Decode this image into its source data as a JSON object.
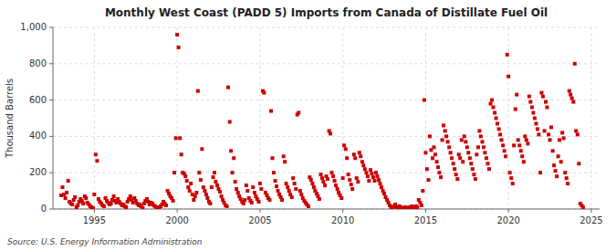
{
  "chart_data": {
    "type": "scatter",
    "title": "Monthly West Coast (PADD 5) Imports from Canada of Distillate Fuel Oil",
    "y_label": "Thousand Barrels",
    "source": "Source: U.S. Energy Information Administration",
    "color": "#cc0000",
    "marker": "square",
    "grid": true,
    "xlim": [
      1992.5,
      2025.5
    ],
    "ylim": [
      0,
      1000
    ],
    "xticks": [
      1995,
      2000,
      2005,
      2010,
      2015,
      2020,
      2025
    ],
    "yticks": [
      0,
      200,
      400,
      600,
      800,
      {
        "value": 1000,
        "label": "1,000"
      }
    ],
    "x": [
      1993.0,
      1993.08,
      1993.17,
      1993.25,
      1993.33,
      1993.42,
      1993.5,
      1993.58,
      1993.67,
      1993.75,
      1993.83,
      1993.92,
      1994.0,
      1994.08,
      1994.17,
      1994.25,
      1994.33,
      1994.42,
      1994.5,
      1994.58,
      1994.67,
      1994.75,
      1994.83,
      1994.92,
      1995.0,
      1995.08,
      1995.17,
      1995.25,
      1995.33,
      1995.42,
      1995.5,
      1995.58,
      1995.67,
      1995.75,
      1995.83,
      1995.92,
      1996.0,
      1996.08,
      1996.17,
      1996.25,
      1996.33,
      1996.42,
      1996.5,
      1996.58,
      1996.67,
      1996.75,
      1996.83,
      1996.92,
      1997.0,
      1997.08,
      1997.17,
      1997.25,
      1997.33,
      1997.42,
      1997.5,
      1997.58,
      1997.67,
      1997.75,
      1997.83,
      1997.92,
      1998.0,
      1998.08,
      1998.17,
      1998.25,
      1998.33,
      1998.42,
      1998.5,
      1998.58,
      1998.67,
      1998.75,
      1998.83,
      1998.92,
      1999.0,
      1999.08,
      1999.17,
      1999.25,
      1999.33,
      1999.42,
      1999.5,
      1999.58,
      1999.67,
      1999.75,
      1999.83,
      1999.92,
      2000.0,
      2000.08,
      2000.17,
      2000.25,
      2000.33,
      2000.42,
      2000.5,
      2000.58,
      2000.67,
      2000.75,
      2000.83,
      2000.92,
      2001.0,
      2001.08,
      2001.17,
      2001.25,
      2001.33,
      2001.42,
      2001.5,
      2001.58,
      2001.67,
      2001.75,
      2001.83,
      2001.92,
      2002.0,
      2002.08,
      2002.17,
      2002.25,
      2002.33,
      2002.42,
      2002.5,
      2002.58,
      2002.67,
      2002.75,
      2002.83,
      2002.92,
      2003.0,
      2003.08,
      2003.17,
      2003.25,
      2003.33,
      2003.42,
      2003.5,
      2003.58,
      2003.67,
      2003.75,
      2003.83,
      2003.92,
      2004.0,
      2004.08,
      2004.17,
      2004.25,
      2004.33,
      2004.42,
      2004.5,
      2004.58,
      2004.67,
      2004.75,
      2004.83,
      2004.92,
      2005.0,
      2005.08,
      2005.17,
      2005.25,
      2005.33,
      2005.42,
      2005.5,
      2005.58,
      2005.67,
      2005.75,
      2005.83,
      2005.92,
      2006.0,
      2006.08,
      2006.17,
      2006.25,
      2006.33,
      2006.42,
      2006.5,
      2006.58,
      2006.67,
      2006.75,
      2006.83,
      2006.92,
      2007.0,
      2007.08,
      2007.17,
      2007.25,
      2007.33,
      2007.42,
      2007.5,
      2007.58,
      2007.67,
      2007.75,
      2007.83,
      2007.92,
      2008.0,
      2008.08,
      2008.17,
      2008.25,
      2008.33,
      2008.42,
      2008.5,
      2008.58,
      2008.67,
      2008.75,
      2008.83,
      2008.92,
      2009.0,
      2009.08,
      2009.17,
      2009.25,
      2009.33,
      2009.42,
      2009.5,
      2009.58,
      2009.67,
      2009.75,
      2009.83,
      2009.92,
      2010.0,
      2010.08,
      2010.17,
      2010.25,
      2010.33,
      2010.42,
      2010.5,
      2010.58,
      2010.67,
      2010.75,
      2010.83,
      2010.92,
      2011.0,
      2011.08,
      2011.17,
      2011.25,
      2011.33,
      2011.42,
      2011.5,
      2011.58,
      2011.67,
      2011.75,
      2011.83,
      2011.92,
      2012.0,
      2012.08,
      2012.17,
      2012.25,
      2012.33,
      2012.42,
      2012.5,
      2012.58,
      2012.67,
      2012.75,
      2012.83,
      2012.92,
      2013.0,
      2013.08,
      2013.17,
      2013.25,
      2013.33,
      2013.42,
      2013.5,
      2013.58,
      2013.67,
      2013.75,
      2013.83,
      2013.92,
      2014.0,
      2014.08,
      2014.17,
      2014.25,
      2014.33,
      2014.42,
      2014.5,
      2014.58,
      2014.67,
      2014.75,
      2014.83,
      2014.92,
      2015.0,
      2015.08,
      2015.17,
      2015.25,
      2015.33,
      2015.42,
      2015.5,
      2015.58,
      2015.67,
      2015.75,
      2015.83,
      2015.92,
      2016.0,
      2016.08,
      2016.17,
      2016.25,
      2016.33,
      2016.42,
      2016.5,
      2016.58,
      2016.67,
      2016.75,
      2016.83,
      2016.92,
      2017.0,
      2017.08,
      2017.17,
      2017.25,
      2017.33,
      2017.42,
      2017.5,
      2017.58,
      2017.67,
      2017.75,
      2017.83,
      2017.92,
      2018.0,
      2018.08,
      2018.17,
      2018.25,
      2018.33,
      2018.42,
      2018.5,
      2018.58,
      2018.67,
      2018.75,
      2018.83,
      2018.92,
      2019.0,
      2019.08,
      2019.17,
      2019.25,
      2019.33,
      2019.42,
      2019.5,
      2019.58,
      2019.67,
      2019.75,
      2019.83,
      2019.92,
      2020.0,
      2020.08,
      2020.17,
      2020.25,
      2020.33,
      2020.42,
      2020.5,
      2020.58,
      2020.67,
      2020.75,
      2020.83,
      2020.92,
      2021.0,
      2021.08,
      2021.17,
      2021.25,
      2021.33,
      2021.42,
      2021.5,
      2021.58,
      2021.67,
      2021.75,
      2021.83,
      2021.92,
      2022.0,
      2022.08,
      2022.17,
      2022.25,
      2022.33,
      2022.42,
      2022.5,
      2022.58,
      2022.67,
      2022.75,
      2022.83,
      2022.92,
      2023.0,
      2023.08,
      2023.17,
      2023.25,
      2023.33,
      2023.42,
      2023.5,
      2023.58,
      2023.67,
      2023.75,
      2023.83,
      2023.92,
      2024.0,
      2024.08,
      2024.17,
      2024.25,
      2024.33,
      2024.42,
      2024.5
    ],
    "values": [
      75,
      120,
      80,
      60,
      90,
      155,
      40,
      30,
      25,
      50,
      65,
      10,
      20,
      40,
      55,
      45,
      30,
      70,
      60,
      35,
      25,
      15,
      10,
      5,
      80,
      300,
      265,
      55,
      40,
      30,
      20,
      15,
      60,
      45,
      35,
      25,
      30,
      50,
      70,
      45,
      35,
      55,
      40,
      30,
      20,
      25,
      15,
      10,
      40,
      55,
      70,
      50,
      35,
      60,
      45,
      30,
      20,
      25,
      15,
      5,
      30,
      45,
      55,
      40,
      25,
      35,
      30,
      20,
      15,
      10,
      5,
      8,
      15,
      25,
      40,
      30,
      20,
      100,
      85,
      70,
      60,
      45,
      200,
      390,
      960,
      890,
      390,
      300,
      200,
      195,
      180,
      155,
      120,
      100,
      140,
      80,
      50,
      70,
      90,
      650,
      200,
      160,
      330,
      120,
      100,
      80,
      60,
      40,
      30,
      120,
      175,
      200,
      150,
      130,
      110,
      95,
      70,
      50,
      35,
      20,
      15,
      670,
      480,
      320,
      200,
      280,
      150,
      110,
      90,
      70,
      55,
      40,
      30,
      50,
      130,
      100,
      60,
      45,
      35,
      120,
      90,
      70,
      55,
      40,
      140,
      110,
      650,
      640,
      90,
      75,
      60,
      50,
      540,
      280,
      200,
      155,
      125,
      100,
      80,
      65,
      50,
      290,
      260,
      140,
      120,
      100,
      80,
      65,
      170,
      140,
      110,
      520,
      530,
      100,
      80,
      60,
      45,
      35,
      25,
      15,
      175,
      160,
      140,
      120,
      100,
      85,
      70,
      55,
      190,
      170,
      150,
      130,
      180,
      165,
      430,
      415,
      200,
      180,
      155,
      130,
      110,
      90,
      75,
      60,
      170,
      350,
      330,
      280,
      190,
      160,
      135,
      110,
      300,
      280,
      170,
      150,
      310,
      290,
      260,
      240,
      220,
      200,
      180,
      155,
      215,
      195,
      175,
      155,
      200,
      180,
      160,
      140,
      120,
      100,
      85,
      65,
      50,
      35,
      20,
      10,
      5,
      15,
      25,
      10,
      5,
      15,
      10,
      5,
      0,
      10,
      5,
      0,
      10,
      5,
      15,
      10,
      5,
      15,
      10,
      50,
      35,
      20,
      100,
      600,
      310,
      220,
      160,
      400,
      325,
      280,
      340,
      300,
      260,
      230,
      200,
      175,
      380,
      460,
      430,
      400,
      370,
      340,
      310,
      280,
      250,
      220,
      190,
      165,
      300,
      280,
      380,
      260,
      400,
      370,
      340,
      310,
      280,
      250,
      220,
      190,
      165,
      300,
      340,
      430,
      400,
      370,
      340,
      310,
      280,
      250,
      220,
      580,
      600,
      560,
      530,
      500,
      470,
      440,
      410,
      380,
      350,
      320,
      290,
      850,
      730,
      200,
      170,
      140,
      350,
      550,
      630,
      380,
      350,
      320,
      290,
      260,
      400,
      380,
      360,
      620,
      590,
      560,
      530,
      500,
      470,
      440,
      410,
      200,
      640,
      620,
      430,
      590,
      560,
      410,
      380,
      450,
      320,
      240,
      210,
      180,
      290,
      380,
      260,
      420,
      390,
      200,
      170,
      140,
      650,
      630,
      610,
      590,
      800,
      430,
      410,
      250,
      30,
      20,
      10
    ]
  }
}
